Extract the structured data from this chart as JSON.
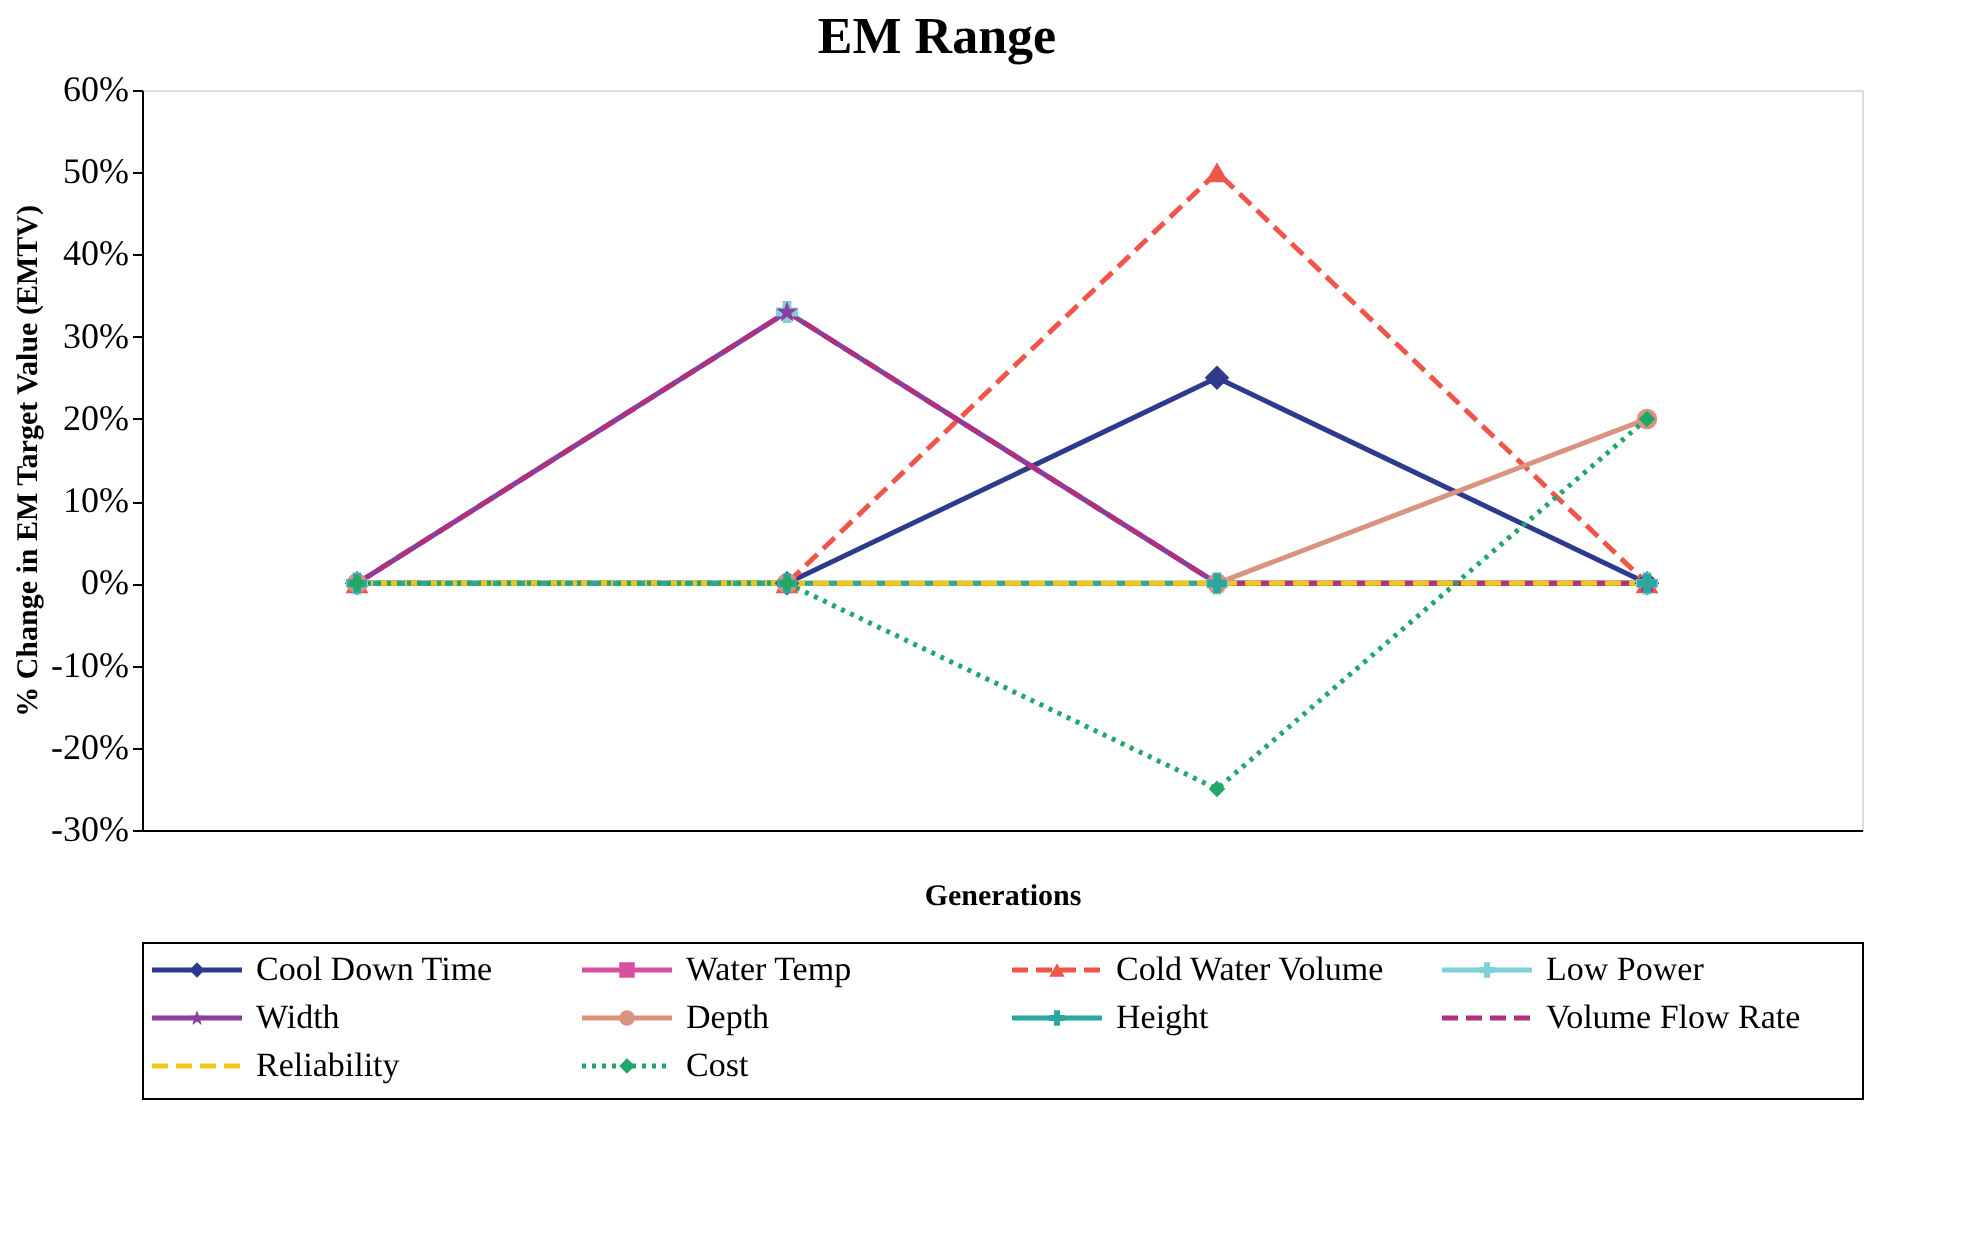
{
  "chart_data": {
    "type": "line",
    "title": "EM Range",
    "xlabel": "Generations",
    "ylabel": "% Change in EM Target Value (EMTV)",
    "categories": [
      null,
      null,
      null,
      null
    ],
    "ylim": [
      -30,
      60
    ],
    "yticks": [
      {
        "value": -30,
        "label": "-30%"
      },
      {
        "value": -20,
        "label": "-20%"
      },
      {
        "value": -10,
        "label": "-10%"
      },
      {
        "value": 0,
        "label": "0%"
      },
      {
        "value": 10,
        "label": "10%"
      },
      {
        "value": 20,
        "label": "20%"
      },
      {
        "value": 30,
        "label": "30%"
      },
      {
        "value": 40,
        "label": "40%"
      },
      {
        "value": 50,
        "label": "50%"
      },
      {
        "value": 60,
        "label": "60%"
      }
    ],
    "tick_labels": "y",
    "grid": false,
    "legend": "bottom",
    "series": [
      {
        "name": "Cool Down Time",
        "color": "#2e3a8c",
        "marker": "diamond",
        "line_style": "solid",
        "values": [
          0,
          0,
          25,
          0
        ]
      },
      {
        "name": "Water Temp",
        "color": "#d94fa0",
        "marker": "square",
        "line_style": "solid",
        "values": [
          null,
          null,
          null,
          null
        ]
      },
      {
        "name": "Cold Water Volume",
        "color": "#f0554a",
        "marker": "triangle",
        "line_style": "dashed",
        "values": [
          0,
          0,
          50,
          0
        ]
      },
      {
        "name": "Low Power",
        "color": "#7fd0d8",
        "marker": "cross",
        "line_style": "solid",
        "values": [
          0,
          33,
          0,
          0
        ]
      },
      {
        "name": "Width",
        "color": "#8a3fa0",
        "marker": "star",
        "line_style": "solid",
        "values": [
          0,
          33,
          0,
          0
        ]
      },
      {
        "name": "Depth",
        "color": "#d99480",
        "marker": "circle",
        "line_style": "solid",
        "values": [
          0,
          0,
          0,
          20
        ]
      },
      {
        "name": "Height",
        "color": "#2aa8a0",
        "marker": "cross",
        "line_style": "solid",
        "values": [
          0,
          0,
          0,
          0
        ]
      },
      {
        "name": "Volume Flow Rate",
        "color": "#b0307f",
        "marker": "none",
        "line_style": "dashed",
        "values": [
          0,
          33,
          0,
          0
        ]
      },
      {
        "name": "Reliability",
        "color": "#f5c518",
        "marker": "none",
        "line_style": "dashed",
        "values": [
          0,
          0,
          0,
          0
        ]
      },
      {
        "name": "Cost",
        "color": "#1fa868",
        "marker": "diamond",
        "line_style": "dotted",
        "values": [
          0,
          0,
          -25,
          20
        ]
      }
    ]
  }
}
